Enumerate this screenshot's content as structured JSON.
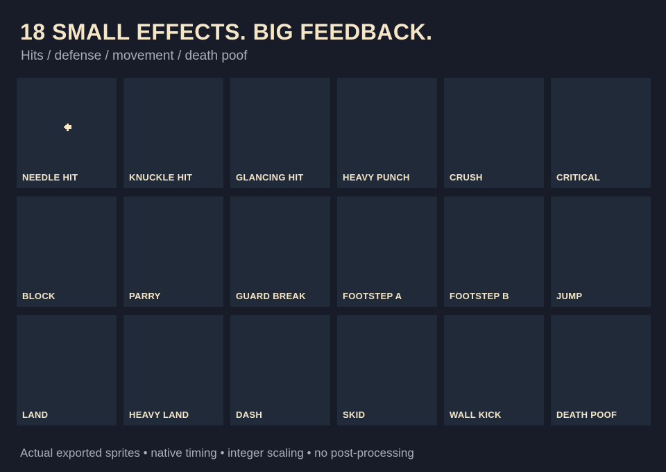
{
  "header": {
    "title": "18 SMALL EFFECTS. BIG FEEDBACK.",
    "subtitle": "Hits / defense / movement / death poof"
  },
  "effects": [
    "NEEDLE HIT",
    "KNUCKLE HIT",
    "GLANCING HIT",
    "HEAVY PUNCH",
    "CRUSH",
    "CRITICAL",
    "BLOCK",
    "PARRY",
    "GUARD BREAK",
    "FOOTSTEP A",
    "FOOTSTEP B",
    "JUMP",
    "LAND",
    "HEAVY LAND",
    "DASH",
    "SKID",
    "WALL KICK",
    "DEATH POOF"
  ],
  "footer": "Actual exported sprites • native timing • integer scaling • no post-processing"
}
